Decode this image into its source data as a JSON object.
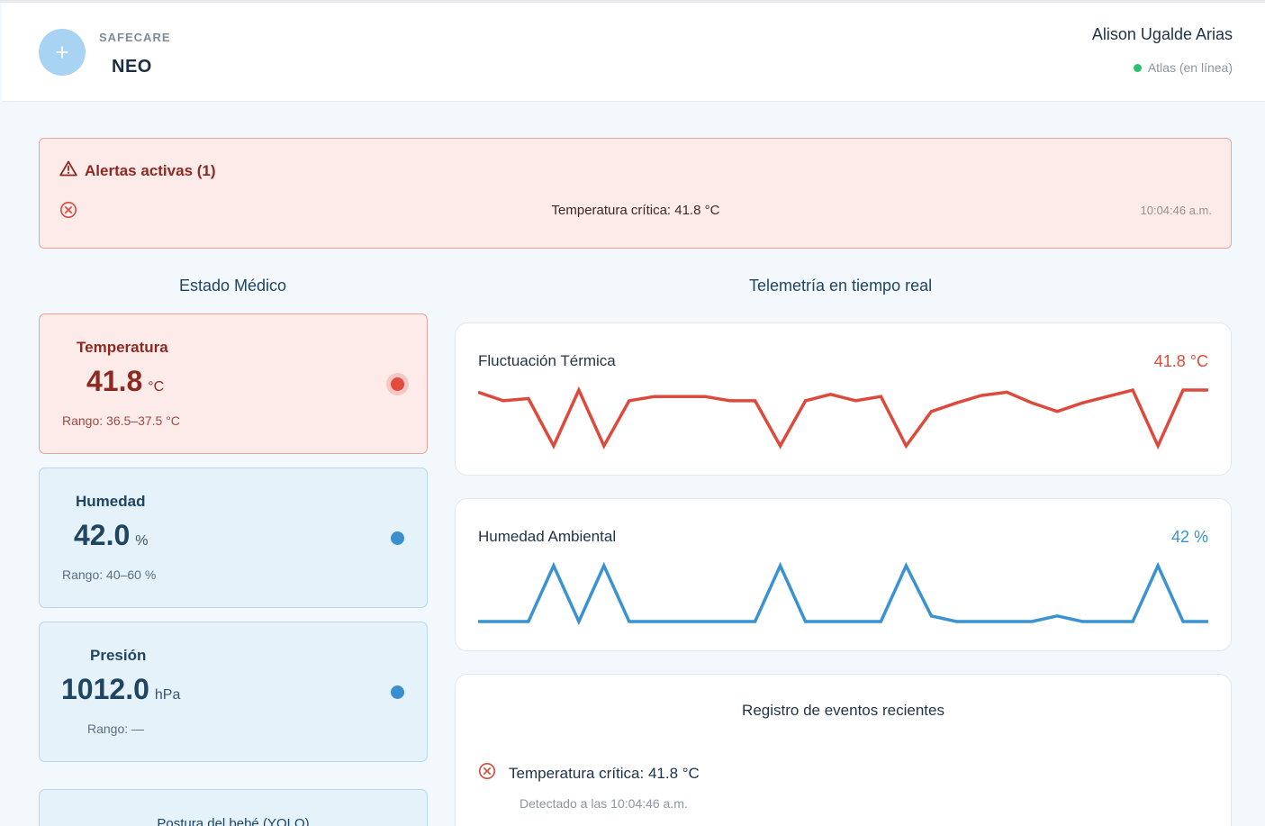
{
  "header": {
    "brand_top": "SAFECARE",
    "brand_main": "NEO",
    "logo_glyph": "+",
    "user_name": "Alison Ugalde Arias",
    "device_status": "Atlas (en línea)",
    "status_color": "#27c26a"
  },
  "alerts": {
    "title": "Alertas activas (1)",
    "items": [
      {
        "message": "Temperatura crítica: 41.8 °C",
        "time": "10:04:46 a.m.",
        "icon": "close-circle-icon"
      }
    ]
  },
  "medical": {
    "section_title": "Estado Médico",
    "vitals": [
      {
        "label": "Temperatura",
        "value": "41.8",
        "unit": "°C",
        "range": "Rango: 36.5–37.5 °C",
        "status": "alert",
        "indicator_color": "#e34b3e"
      },
      {
        "label": "Humedad",
        "value": "42.0",
        "unit": "%",
        "range": "Rango: 40–60 %",
        "status": "normal",
        "indicator_color": "#3a8fd1"
      },
      {
        "label": "Presión",
        "value": "1012.0",
        "unit": "hPa",
        "range": "Rango: —",
        "status": "normal",
        "indicator_color": "#3a8fd1"
      }
    ],
    "posture_title": "Postura del bebé (YOLO)"
  },
  "telemetry": {
    "section_title": "Telemetría en tiempo real",
    "thermal": {
      "title": "Fluctuación Térmica",
      "value": "41.8 °C",
      "color": "#dd4a3c"
    },
    "humidity": {
      "title": "Humedad Ambiental",
      "value": "42 %",
      "color": "#3a93d0"
    }
  },
  "events": {
    "title": "Registro de eventos recientes",
    "items": [
      {
        "message": "Temperatura crítica: 41.8 °C",
        "detail": "Detectado a las 10:04:46 a.m.",
        "icon": "close-circle-icon"
      }
    ]
  },
  "chart_data": [
    {
      "type": "line",
      "title": "Fluctuación Térmica",
      "values": [
        41.6,
        40.8,
        41.0,
        36.6,
        41.8,
        36.6,
        40.8,
        41.2,
        41.2,
        41.2,
        40.8,
        40.8,
        36.6,
        40.8,
        41.4,
        40.8,
        41.2,
        36.6,
        39.8,
        40.6,
        41.3,
        41.6,
        40.6,
        39.8,
        40.6,
        41.2,
        41.8,
        36.6,
        41.8,
        41.8
      ]
    },
    {
      "type": "line",
      "title": "Humedad Ambiental",
      "values": [
        40,
        40,
        40,
        60,
        40,
        60,
        40,
        40,
        40,
        40,
        40,
        40,
        60,
        40,
        40,
        40,
        40,
        60,
        42,
        40,
        40,
        40,
        40,
        42,
        40,
        40,
        40,
        60,
        40,
        40
      ]
    }
  ]
}
